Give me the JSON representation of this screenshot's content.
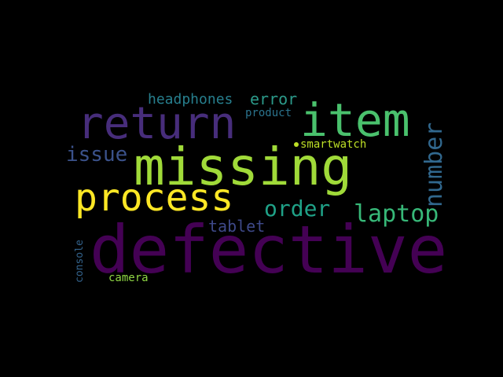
{
  "words": [
    {
      "text": "defective",
      "color": "#440154",
      "rotated": false
    },
    {
      "text": "missing",
      "color": "#a0da39",
      "rotated": false
    },
    {
      "text": "item",
      "color": "#4ac16d",
      "rotated": false
    },
    {
      "text": "return",
      "color": "#472d7b",
      "rotated": false
    },
    {
      "text": "process",
      "color": "#fde725",
      "rotated": false
    },
    {
      "text": "number",
      "color": "#31688e",
      "rotated": true
    },
    {
      "text": "laptop",
      "color": "#37b878",
      "rotated": false
    },
    {
      "text": "order",
      "color": "#1fa187",
      "rotated": false
    },
    {
      "text": "issue",
      "color": "#3b528b",
      "rotated": false
    },
    {
      "text": "headphones",
      "color": "#277f8e",
      "rotated": false
    },
    {
      "text": "error",
      "color": "#2c9a8a",
      "rotated": false
    },
    {
      "text": "tablet",
      "color": "#3e4989",
      "rotated": false
    },
    {
      "text": "product",
      "color": "#2b748e",
      "rotated": false
    },
    {
      "text": "smartwatch",
      "color": "#bddf26",
      "rotated": false
    },
    {
      "text": "console",
      "color": "#33638d",
      "rotated": true
    },
    {
      "text": "camera",
      "color": "#8fd744",
      "rotated": false
    }
  ]
}
